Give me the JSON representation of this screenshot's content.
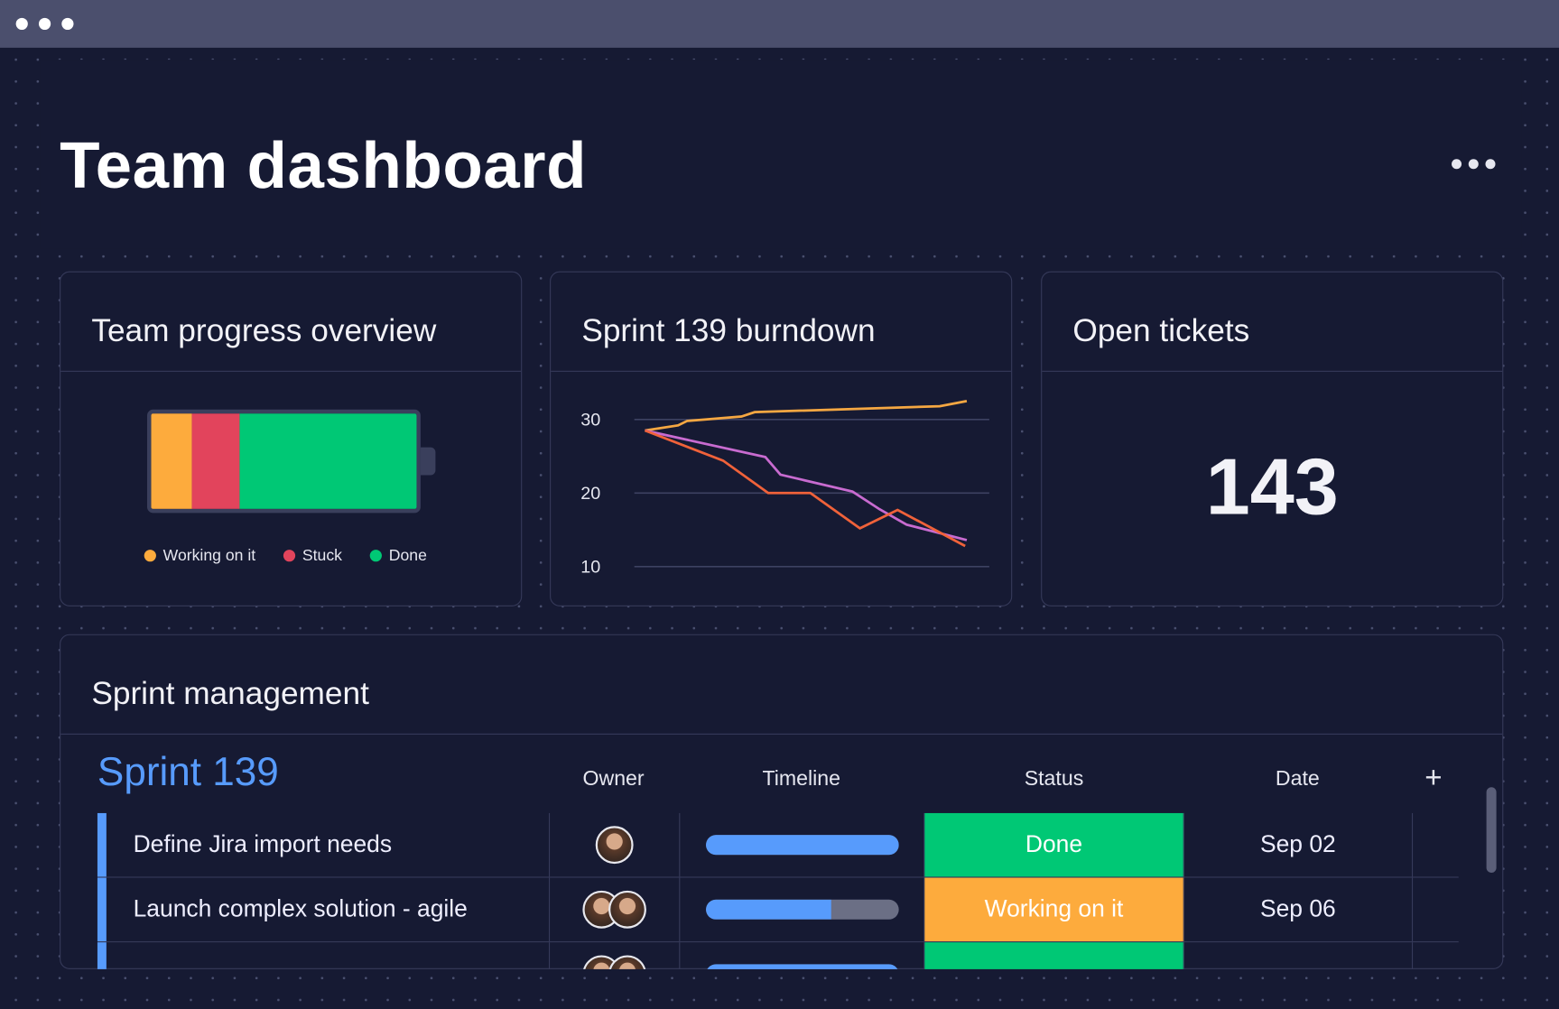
{
  "header": {
    "title": "Team dashboard",
    "more_icon": "more-horizontal-icon"
  },
  "progress": {
    "title": "Team progress overview",
    "segments": [
      {
        "label": "Working on it",
        "fraction": 0.155,
        "color": "#fdab3d"
      },
      {
        "label": "Stuck",
        "fraction": 0.18,
        "color": "#e2445c"
      },
      {
        "label": "Done",
        "fraction": 0.665,
        "color": "#00c875"
      }
    ]
  },
  "burndown": {
    "title": "Sprint 139 burndown"
  },
  "chart_data": {
    "type": "line",
    "title": "Sprint 139 burndown",
    "yticks": [
      30,
      20,
      10
    ],
    "ylim": [
      10,
      32.5
    ],
    "xlim": [
      -0.33,
      10.7
    ],
    "grid": true,
    "series": [
      {
        "color": "#f5a742",
        "points": [
          [
            0,
            28.5
          ],
          [
            1.03,
            29.2
          ],
          [
            1.31,
            29.8
          ],
          [
            3.0,
            30.4
          ],
          [
            3.41,
            31.0
          ],
          [
            9.16,
            31.8
          ],
          [
            10.0,
            32.5
          ]
        ]
      },
      {
        "color": "#c86bd0",
        "points": [
          [
            0,
            28.5
          ],
          [
            3.74,
            24.9
          ],
          [
            4.21,
            22.5
          ],
          [
            6.45,
            20.2
          ],
          [
            7.29,
            17.8
          ],
          [
            8.13,
            15.7
          ],
          [
            10.0,
            13.6
          ]
        ]
      },
      {
        "color": "#f0623a",
        "points": [
          [
            0,
            28.5
          ],
          [
            2.43,
            24.4
          ],
          [
            3.83,
            20.0
          ],
          [
            5.14,
            20.0
          ],
          [
            6.68,
            15.2
          ],
          [
            7.85,
            17.7
          ],
          [
            9.95,
            12.8
          ]
        ]
      }
    ]
  },
  "tickets": {
    "title": "Open tickets",
    "count": "143"
  },
  "sprint": {
    "title": "Sprint management",
    "group": "Sprint 139",
    "group_color": "#579bfc",
    "columns": [
      "Owner",
      "Timeline",
      "Status",
      "Date"
    ],
    "add_icon": "plus-icon",
    "rows": [
      {
        "name": "Define Jira import needs",
        "owners": 1,
        "timeline": 1.0,
        "status": "Done",
        "status_color": "#00c875",
        "date": "Sep 02"
      },
      {
        "name": "Launch complex solution - agile",
        "owners": 2,
        "timeline": 0.65,
        "status": "Working on it",
        "status_color": "#fdab3d",
        "date": "Sep 06"
      },
      {
        "name": "",
        "owners": 2,
        "timeline": 1.0,
        "status": "",
        "status_color": "#00c875",
        "date": ""
      }
    ]
  }
}
